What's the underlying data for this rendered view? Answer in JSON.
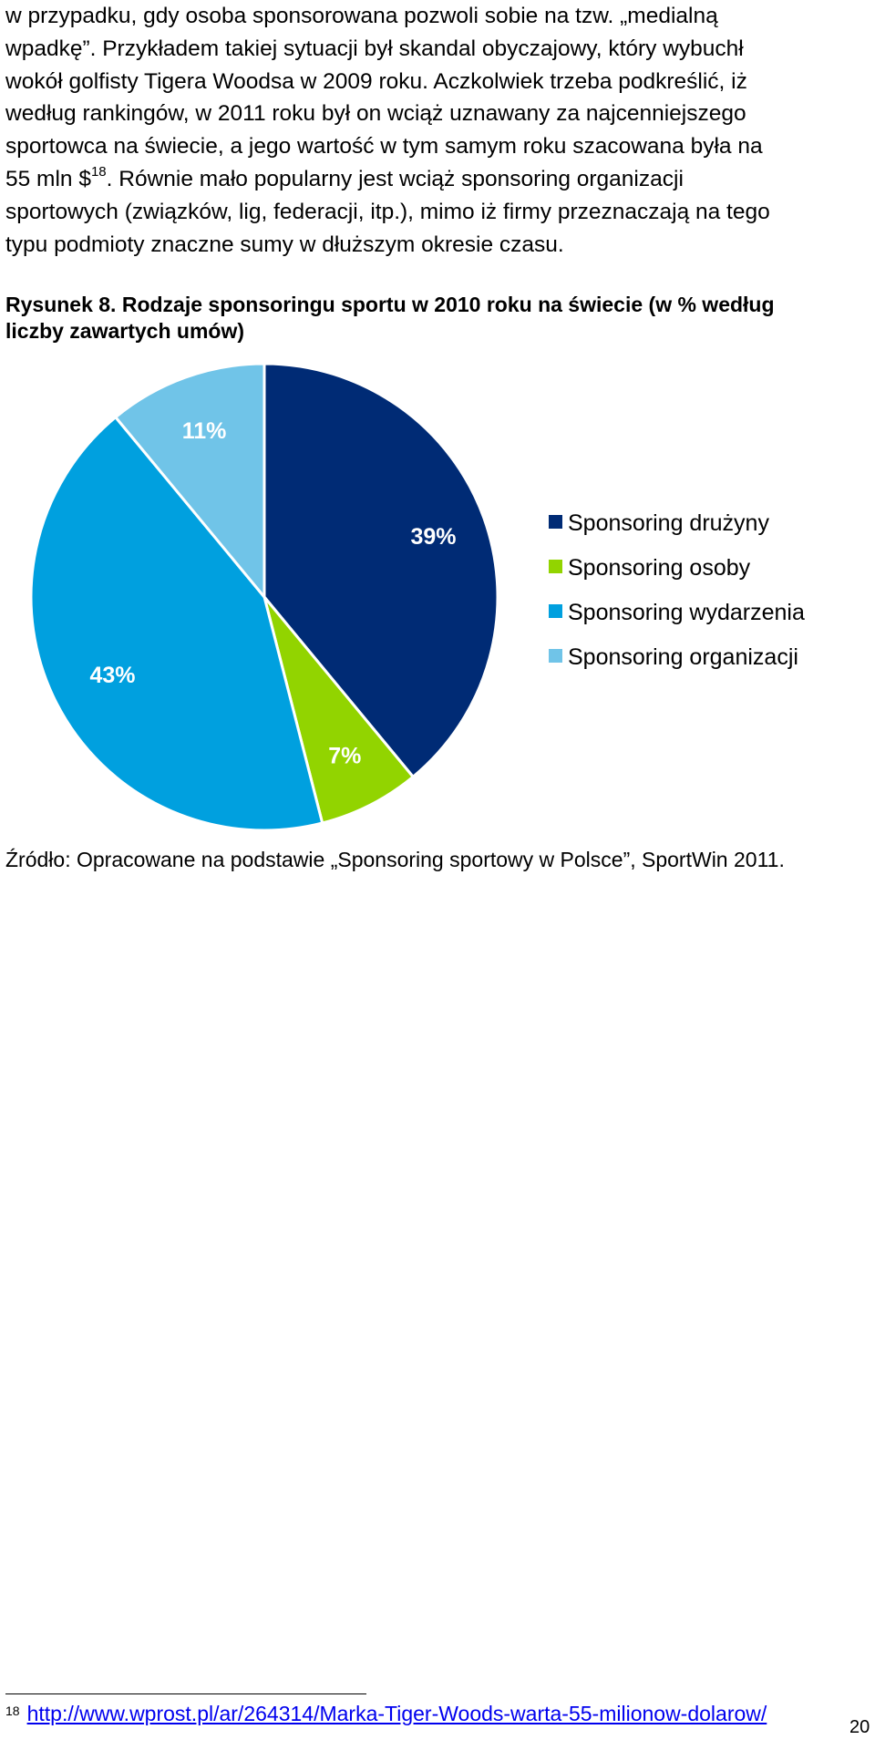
{
  "paragraph": {
    "lines": [
      "w przypadku, gdy osoba sponsorowana pozwoli sobie na tzw. „medialną",
      "wpadkę”. Przykładem takiej sytuacji był skandal obyczajowy, który wybuchł",
      "wokół golfisty Tigera Woodsa w 2009 roku. Aczkolwiek trzeba podkreślić, iż",
      "według rankingów, w 2011 roku był on wciąż uznawany za najcenniejszego",
      "sportowca na świecie, a jego wartość w tym samym roku szacowana była na"
    ],
    "line6_before": "55 mln $",
    "line6_ref": "18",
    "line6_after": ". Równie mało popularny jest wciąż sponsoring organizacji",
    "line7": "sportowych (związków, lig, federacji, itp.), mimo iż firmy przeznaczają na tego",
    "line8": "typu podmioty znaczne sumy w dłuższym okresie czasu."
  },
  "caption": {
    "line1": "Rysunek 8. Rodzaje sponsoringu sportu w 2010 roku na świecie (w % według",
    "line2": "liczby zawartych umów)"
  },
  "chart_data": {
    "type": "pie",
    "title": "",
    "slices": [
      {
        "label": "Sponsoring drużyny",
        "value": 39,
        "value_label": "39%",
        "color": "#002B75"
      },
      {
        "label": "Sponsoring osoby",
        "value": 7,
        "value_label": "7%",
        "color": "#92D400"
      },
      {
        "label": "Sponsoring wydarzenia",
        "value": 43,
        "value_label": "43%",
        "color": "#00A0DF"
      },
      {
        "label": "Sponsoring organizacji",
        "value": 11,
        "value_label": "11%",
        "color": "#70C4E8"
      }
    ],
    "start": "12 o'clock",
    "direction": "clockwise",
    "legend_position": "right"
  },
  "source": "Źródło: Opracowane na podstawie „Sponsoring sportowy w Polsce”, SportWin 2011.",
  "footnote": {
    "number": "18",
    "url": "http://www.wprost.pl/ar/264314/Marka-Tiger-Woods-warta-55-milionow-dolarow/"
  },
  "page_number": "20"
}
